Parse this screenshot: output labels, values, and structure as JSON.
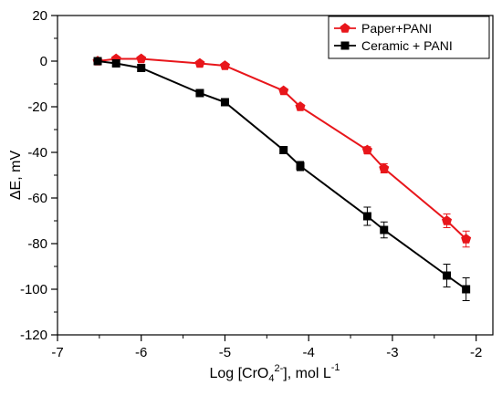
{
  "chart_data": {
    "type": "line",
    "xlabel": {
      "prefix": "Log [CrO",
      "sub": "4",
      "sup": "2-",
      "middle": "], mol L",
      "unit_sup": "-1"
    },
    "ylabel": {
      "prefix": "ΔE, mV"
    },
    "xlim": [
      -7,
      -1.8
    ],
    "ylim": [
      -120,
      20
    ],
    "xticks": [
      -7,
      -6,
      -5,
      -4,
      -3,
      -2
    ],
    "yticks": [
      20,
      0,
      -20,
      -40,
      -60,
      -80,
      -100,
      -120
    ],
    "grid": false,
    "legend_position": "top-right",
    "series": [
      {
        "name": "Paper+PANI",
        "color": "#e8161b",
        "marker": "pentagon",
        "points": [
          {
            "x": -6.52,
            "y": 0,
            "err": 0
          },
          {
            "x": -6.3,
            "y": 1,
            "err": 0
          },
          {
            "x": -6.0,
            "y": 1,
            "err": 0
          },
          {
            "x": -5.3,
            "y": -1,
            "err": 0
          },
          {
            "x": -5.0,
            "y": -2,
            "err": 0
          },
          {
            "x": -4.3,
            "y": -13,
            "err": 0
          },
          {
            "x": -4.1,
            "y": -20,
            "err": 0
          },
          {
            "x": -3.3,
            "y": -39,
            "err": 1.5
          },
          {
            "x": -3.1,
            "y": -47,
            "err": 2
          },
          {
            "x": -2.35,
            "y": -70,
            "err": 3
          },
          {
            "x": -2.12,
            "y": -78,
            "err": 3.5
          }
        ]
      },
      {
        "name": "Ceramic + PANI",
        "color": "#000000",
        "marker": "square",
        "points": [
          {
            "x": -6.52,
            "y": 0,
            "err": 0
          },
          {
            "x": -6.3,
            "y": -1,
            "err": 0
          },
          {
            "x": -6.0,
            "y": -3,
            "err": 0
          },
          {
            "x": -5.3,
            "y": -14,
            "err": 0
          },
          {
            "x": -5.0,
            "y": -18,
            "err": 0
          },
          {
            "x": -4.3,
            "y": -39,
            "err": 1.5
          },
          {
            "x": -4.1,
            "y": -46,
            "err": 2
          },
          {
            "x": -3.3,
            "y": -68,
            "err": 4
          },
          {
            "x": -3.1,
            "y": -74,
            "err": 3.5
          },
          {
            "x": -2.35,
            "y": -94,
            "err": 5
          },
          {
            "x": -2.12,
            "y": -100,
            "err": 5
          }
        ]
      }
    ]
  }
}
